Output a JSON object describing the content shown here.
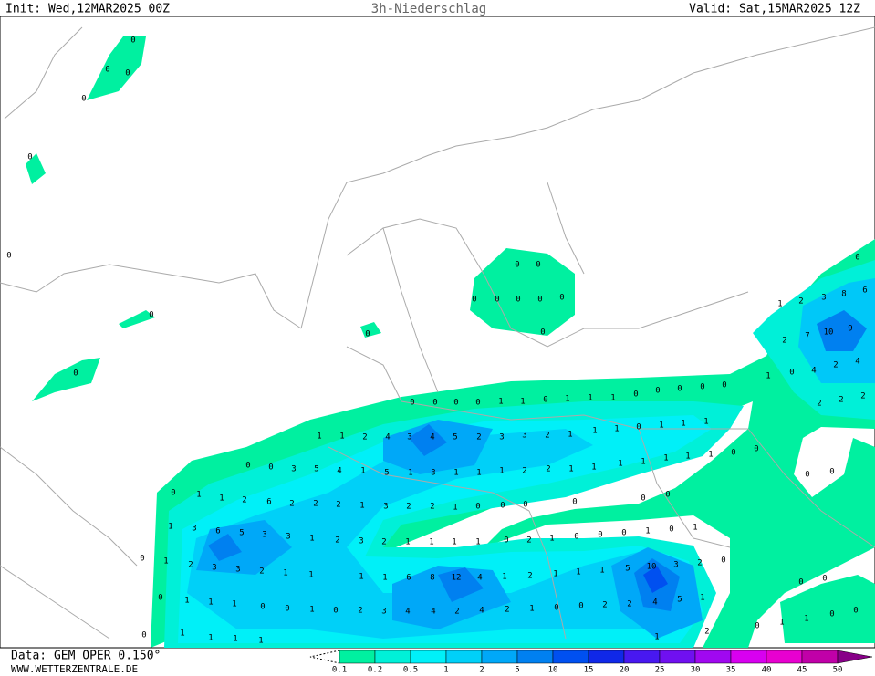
{
  "header": {
    "init": "Init: Wed,12MAR2025 00Z",
    "title": "3h-Niederschlag",
    "valid": "Valid: Sat,15MAR2025 12Z"
  },
  "footer": {
    "data": "Data: GEM OPER 0.150°",
    "site": "WWW.WETTERZENTRALE.DE"
  },
  "legend": {
    "levels": [
      0.1,
      0.2,
      0.5,
      1,
      2,
      5,
      10,
      15,
      20,
      25,
      30,
      35,
      40,
      45,
      50
    ],
    "colors": [
      "#00f0a0",
      "#00f0d8",
      "#00f0f8",
      "#00d0f8",
      "#00a8f8",
      "#0080f0",
      "#0050f0",
      "#1028e8",
      "#4818f0",
      "#7010f0",
      "#a008f0",
      "#d800f0",
      "#e800d0",
      "#c000a8",
      "#880088"
    ]
  },
  "map": {
    "labels": [
      0,
      0,
      0,
      0,
      0,
      0,
      0,
      0,
      0,
      0,
      0,
      0,
      0,
      0,
      0,
      0,
      0,
      0,
      1,
      2,
      3,
      8,
      6,
      2,
      7,
      10,
      9,
      1,
      0,
      4,
      2,
      4,
      2,
      2,
      2,
      0,
      0,
      0,
      0,
      0,
      0,
      1,
      1,
      0,
      1,
      1,
      1,
      0,
      0,
      0,
      0,
      0,
      1,
      1,
      0,
      1,
      1,
      1,
      1,
      1,
      2,
      4,
      3,
      4,
      5,
      2,
      3,
      3,
      2,
      1,
      1,
      1,
      1,
      1,
      1,
      0,
      0,
      0,
      0,
      3,
      5,
      4,
      1,
      5,
      1,
      3,
      1,
      1,
      1,
      2,
      2,
      1,
      1,
      0,
      1,
      1,
      2,
      6,
      2,
      2,
      2,
      1,
      3,
      2,
      2,
      1,
      0,
      0,
      0,
      0,
      0,
      0,
      1,
      3,
      6,
      5,
      3,
      3,
      1,
      2,
      3,
      2,
      1,
      1,
      1,
      1,
      0,
      2,
      1,
      0,
      0,
      0,
      1,
      0,
      1,
      0,
      1,
      2,
      3,
      3,
      2,
      1,
      1,
      1,
      1,
      6,
      8,
      12,
      4,
      1,
      2,
      1,
      1,
      1,
      5,
      10,
      3,
      2,
      0,
      0,
      1,
      1,
      1,
      0,
      0,
      1,
      0,
      2,
      3,
      4,
      4,
      2,
      4,
      2,
      1,
      0,
      0,
      2,
      2,
      4,
      5,
      1,
      0,
      0,
      0,
      1,
      1,
      0,
      0,
      1,
      1,
      1,
      1,
      0,
      1,
      2
    ]
  }
}
